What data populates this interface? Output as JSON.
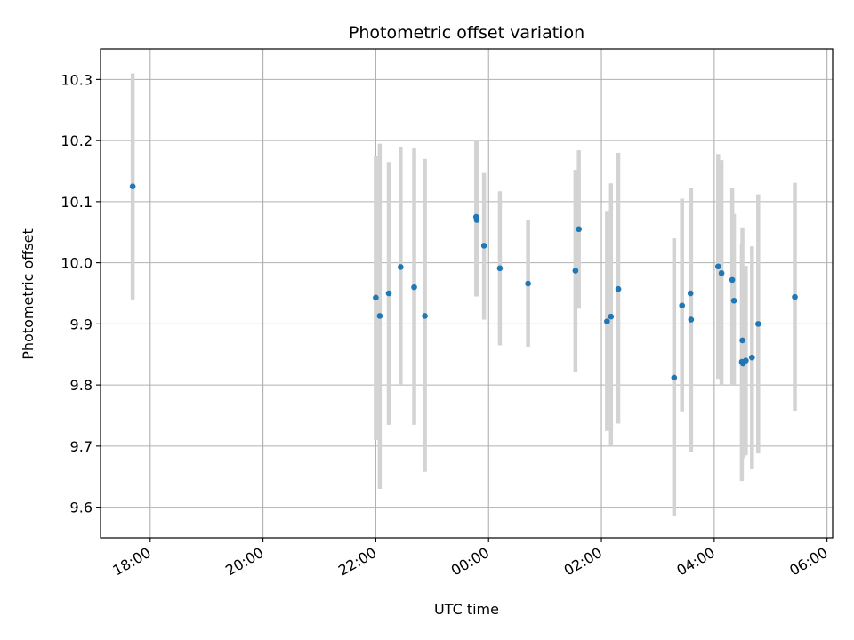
{
  "chart_data": {
    "type": "scatter",
    "title": "Photometric offset variation",
    "xlabel": "UTC time",
    "ylabel": "Photometric offset",
    "x_unit": "UTC time, hours since 18:00 of the first night",
    "xlim": [
      -0.88,
      12.1
    ],
    "ylim": [
      9.55,
      10.35
    ],
    "x_ticks": [
      {
        "x": 0,
        "label": "18:00"
      },
      {
        "x": 2,
        "label": "20:00"
      },
      {
        "x": 4,
        "label": "22:00"
      },
      {
        "x": 6,
        "label": "00:00"
      },
      {
        "x": 8,
        "label": "02:00"
      },
      {
        "x": 10,
        "label": "04:00"
      },
      {
        "x": 12,
        "label": "06:00"
      }
    ],
    "y_ticks": [
      {
        "y": 9.6,
        "label": "9.6"
      },
      {
        "y": 9.7,
        "label": "9.7"
      },
      {
        "y": 9.8,
        "label": "9.8"
      },
      {
        "y": 9.9,
        "label": "9.9"
      },
      {
        "y": 10.0,
        "label": "10.0"
      },
      {
        "y": 10.1,
        "label": "10.1"
      },
      {
        "y": 10.2,
        "label": "10.2"
      },
      {
        "y": 10.3,
        "label": "10.3"
      }
    ],
    "grid": true,
    "colors": {
      "marker": "#1f77b4",
      "errorbar": "#d3d3d3",
      "grid": "#b0b0b0",
      "axes": "#000000"
    },
    "points": [
      {
        "x": -0.31,
        "y": 10.125,
        "lo": 9.94,
        "hi": 10.31
      },
      {
        "x": 4.0,
        "y": 9.943,
        "lo": 9.71,
        "hi": 10.175
      },
      {
        "x": 4.07,
        "y": 9.913,
        "lo": 9.63,
        "hi": 10.195
      },
      {
        "x": 4.23,
        "y": 9.95,
        "lo": 9.735,
        "hi": 10.165
      },
      {
        "x": 4.44,
        "y": 9.993,
        "lo": 9.8,
        "hi": 10.19
      },
      {
        "x": 4.68,
        "y": 9.96,
        "lo": 9.735,
        "hi": 10.188
      },
      {
        "x": 4.87,
        "y": 9.913,
        "lo": 9.658,
        "hi": 10.17
      },
      {
        "x": 5.78,
        "y": 10.075,
        "lo": 9.945,
        "hi": 10.2
      },
      {
        "x": 5.79,
        "y": 10.07,
        "lo": 9.945,
        "hi": 10.2
      },
      {
        "x": 5.92,
        "y": 10.028,
        "lo": 9.907,
        "hi": 10.147
      },
      {
        "x": 6.2,
        "y": 9.991,
        "lo": 9.865,
        "hi": 10.117
      },
      {
        "x": 6.7,
        "y": 9.966,
        "lo": 9.863,
        "hi": 10.07
      },
      {
        "x": 7.54,
        "y": 9.987,
        "lo": 9.822,
        "hi": 10.152
      },
      {
        "x": 7.6,
        "y": 10.055,
        "lo": 9.925,
        "hi": 10.184
      },
      {
        "x": 8.1,
        "y": 9.904,
        "lo": 9.725,
        "hi": 10.085
      },
      {
        "x": 8.17,
        "y": 9.912,
        "lo": 9.7,
        "hi": 10.13
      },
      {
        "x": 8.3,
        "y": 9.957,
        "lo": 9.737,
        "hi": 10.18
      },
      {
        "x": 9.29,
        "y": 9.812,
        "lo": 9.585,
        "hi": 10.04
      },
      {
        "x": 9.43,
        "y": 9.93,
        "lo": 9.757,
        "hi": 10.105
      },
      {
        "x": 9.58,
        "y": 9.95,
        "lo": 9.79,
        "hi": 10.11
      },
      {
        "x": 9.59,
        "y": 9.907,
        "lo": 9.69,
        "hi": 10.123
      },
      {
        "x": 10.07,
        "y": 9.994,
        "lo": 9.81,
        "hi": 10.178
      },
      {
        "x": 10.13,
        "y": 9.983,
        "lo": 9.8,
        "hi": 10.168
      },
      {
        "x": 10.32,
        "y": 9.972,
        "lo": 9.8,
        "hi": 10.122
      },
      {
        "x": 10.35,
        "y": 9.938,
        "lo": 9.8,
        "hi": 10.08
      },
      {
        "x": 10.49,
        "y": 9.838,
        "lo": 9.643,
        "hi": 10.032
      },
      {
        "x": 10.5,
        "y": 9.873,
        "lo": 9.69,
        "hi": 10.058
      },
      {
        "x": 10.51,
        "y": 9.835,
        "lo": 9.68,
        "hi": 9.99
      },
      {
        "x": 10.56,
        "y": 9.84,
        "lo": 9.685,
        "hi": 9.995
      },
      {
        "x": 10.67,
        "y": 9.845,
        "lo": 9.662,
        "hi": 10.027
      },
      {
        "x": 10.78,
        "y": 9.9,
        "lo": 9.688,
        "hi": 10.112
      },
      {
        "x": 11.43,
        "y": 9.944,
        "lo": 9.758,
        "hi": 10.131
      }
    ]
  }
}
